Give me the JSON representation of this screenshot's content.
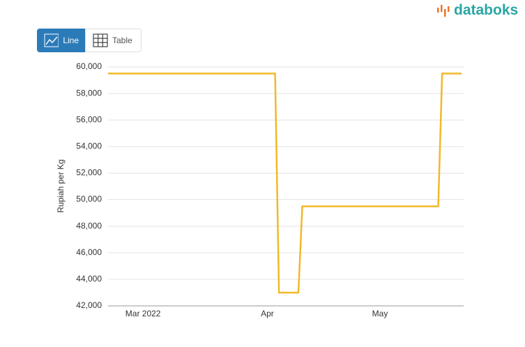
{
  "brand": "databoks",
  "toolbar": {
    "buttons": [
      "Line",
      "Table"
    ]
  },
  "chart_data": {
    "type": "line",
    "y_label": "Rupiah per Kg",
    "color": "#f2b829",
    "grid": true,
    "ylim": [
      42000,
      60000
    ],
    "yticks": [
      {
        "value": 42000,
        "label": "42,000"
      },
      {
        "value": 44000,
        "label": "44,000"
      },
      {
        "value": 46000,
        "label": "46,000"
      },
      {
        "value": 48000,
        "label": "48,000"
      },
      {
        "value": 50000,
        "label": "50,000"
      },
      {
        "value": 52000,
        "label": "52,000"
      },
      {
        "value": 54000,
        "label": "54,000"
      },
      {
        "value": 56000,
        "label": "56,000"
      },
      {
        "value": 58000,
        "label": "58,000"
      },
      {
        "value": 60000,
        "label": "60,000"
      }
    ],
    "categories": [
      null,
      null,
      null,
      null,
      null,
      null,
      null,
      null,
      null,
      "Mar 2022",
      null,
      null,
      null,
      null,
      null,
      null,
      null,
      null,
      null,
      null,
      null,
      null,
      null,
      null,
      null,
      null,
      null,
      null,
      null,
      null,
      null,
      null,
      null,
      null,
      null,
      null,
      null,
      null,
      null,
      null,
      null,
      "Apr",
      null,
      null,
      null,
      null,
      null,
      null,
      null,
      null,
      null,
      null,
      null,
      null,
      null,
      null,
      null,
      null,
      null,
      null,
      null,
      null,
      null,
      null,
      null,
      null,
      null,
      null,
      null,
      null,
      "May",
      null,
      null,
      null,
      null,
      null,
      null,
      null,
      null,
      null,
      null,
      null,
      null,
      null,
      null,
      null,
      null,
      null,
      null,
      null,
      null,
      null
    ],
    "values": [
      59500,
      59500,
      59500,
      59500,
      59500,
      59500,
      59500,
      59500,
      59500,
      59500,
      59500,
      59500,
      59500,
      59500,
      59500,
      59500,
      59500,
      59500,
      59500,
      59500,
      59500,
      59500,
      59500,
      59500,
      59500,
      59500,
      59500,
      59500,
      59500,
      59500,
      59500,
      59500,
      59500,
      59500,
      59500,
      59500,
      59500,
      59500,
      59500,
      59500,
      59500,
      59500,
      59500,
      59500,
      43000,
      43000,
      43000,
      43000,
      43000,
      43000,
      49500,
      49500,
      49500,
      49500,
      49500,
      49500,
      49500,
      49500,
      49500,
      49500,
      49500,
      49500,
      49500,
      49500,
      49500,
      49500,
      49500,
      49500,
      49500,
      49500,
      49500,
      49500,
      49500,
      49500,
      49500,
      49500,
      49500,
      49500,
      49500,
      49500,
      49500,
      49500,
      49500,
      49500,
      49500,
      49500,
      59500,
      59500,
      59500,
      59500,
      59500,
      59500
    ]
  }
}
